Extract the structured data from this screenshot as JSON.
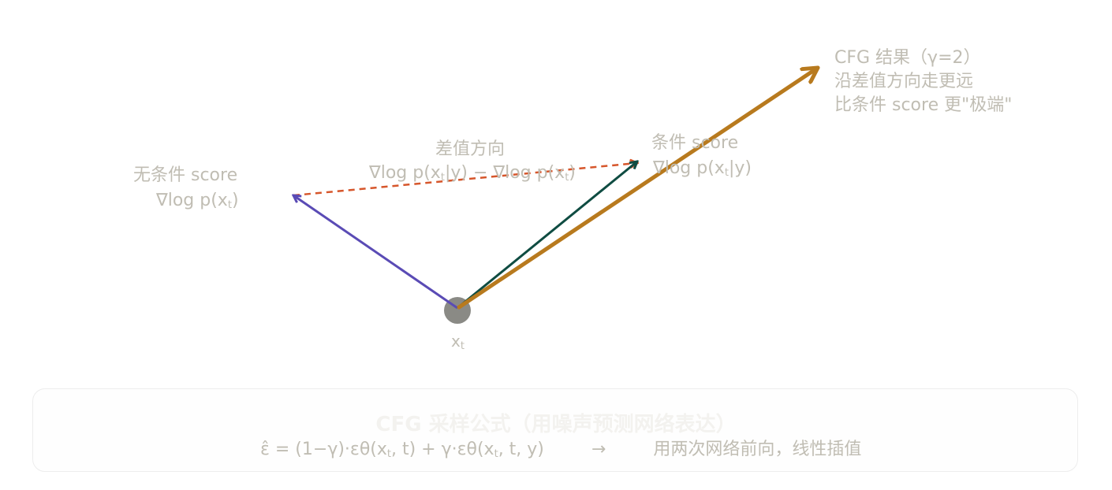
{
  "labels": {
    "cfg_line1": "CFG 结果（γ=2）",
    "cfg_line2": "沿差值方向走更远",
    "cfg_line3": "比条件 score 更\"极端\"",
    "diff_title": "差值方向",
    "diff_formula_a": "∇log p(x",
    "diff_sub1": "t",
    "diff_formula_b": "|y) − ∇log p(x",
    "diff_sub2": "t",
    "diff_formula_c": ")",
    "cond_title": "条件 score",
    "cond_formula_a": "∇log p(x",
    "cond_sub": "t",
    "cond_formula_b": "|y)",
    "uncond_title": "无条件 score",
    "uncond_formula_a": "∇log p(x",
    "uncond_sub": "t",
    "uncond_formula_b": ")",
    "origin_a": "x",
    "origin_sub": "t"
  },
  "formula_box": {
    "title": "CFG 采样公式（用噪声预测网络表达）",
    "part1": "ε̂ = (1−γ)·εθ(x",
    "sub1": "t",
    "part2": ", t) + γ·εθ(x",
    "sub2": "t",
    "part3": ", t, y)",
    "arrow": "→",
    "note": "用两次网络前向，线性插值"
  },
  "colors": {
    "uncond": "#5a4bb5",
    "cond": "#0f4c42",
    "cfg": "#b87a1e",
    "diff": "#d6562b",
    "origin": "#8a8a85"
  }
}
